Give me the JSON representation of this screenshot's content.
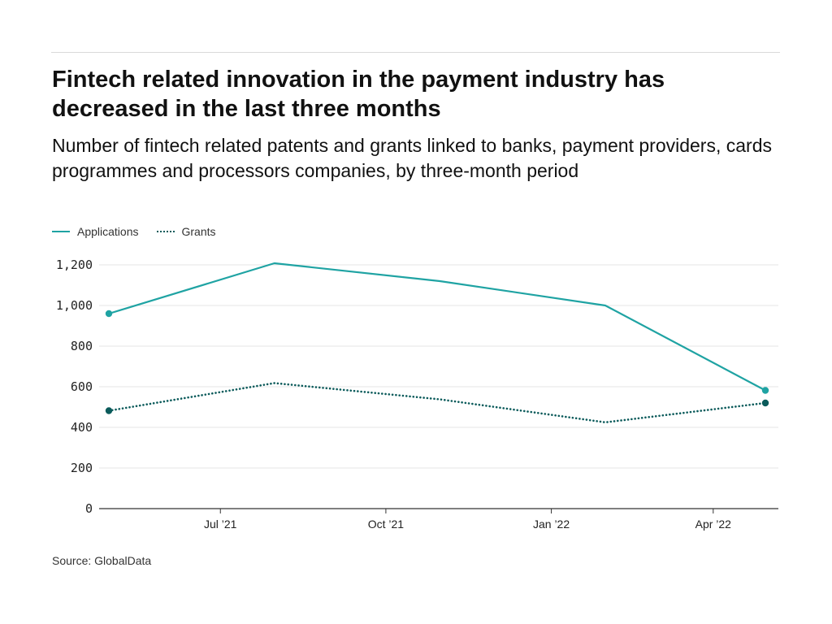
{
  "title": "Fintech related innovation in the payment industry has decreased in the last three months",
  "subtitle": "Number of fintech related patents and grants linked to banks, payment providers, cards programmes and processors companies, by three-month period",
  "legend": {
    "items": [
      "Applications",
      "Grants"
    ]
  },
  "source": "Source: GlobalData",
  "colors": {
    "applications": "#1fa3a3",
    "grants": "#0b5b5b",
    "grid": "#e6e6e6",
    "axis": "#333333"
  },
  "chart_data": {
    "type": "line",
    "title": "Fintech related innovation in the payment industry has decreased in the last three months",
    "subtitle": "Number of fintech related patents and grants linked to banks, payment providers, cards programmes and processors companies, by three-month period",
    "x": [
      "2021-04-30",
      "2021-07-31",
      "2021-10-31",
      "2022-01-31",
      "2022-04-30"
    ],
    "x_ticks": [
      {
        "date": "2021-07-01",
        "label": "Jul ’21"
      },
      {
        "date": "2021-10-01",
        "label": "Oct ’21"
      },
      {
        "date": "2022-01-01",
        "label": "Jan ’22"
      },
      {
        "date": "2022-04-01",
        "label": "Apr ’22"
      }
    ],
    "ylim": [
      0,
      1200
    ],
    "yticks": [
      0,
      200,
      400,
      600,
      800,
      1000,
      1200
    ],
    "ytick_labels": [
      "0",
      "200",
      "400",
      "600",
      "800",
      "1,000",
      "1,200"
    ],
    "series": [
      {
        "name": "Applications",
        "style": "solid",
        "values": [
          960,
          1208,
          1120,
          1000,
          582
        ]
      },
      {
        "name": "Grants",
        "style": "dotted",
        "values": [
          482,
          618,
          538,
          425,
          520
        ]
      }
    ],
    "grid": true,
    "legend_position": "top-left"
  }
}
